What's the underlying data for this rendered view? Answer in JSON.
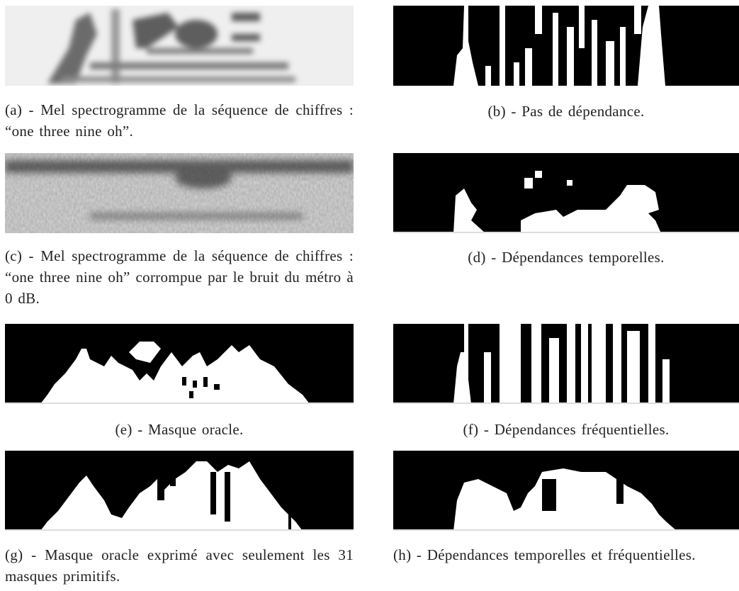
{
  "panels": [
    {
      "caption": "(a) - Mel spectrogramme de la séquence de chiffres : “one three nine oh”."
    },
    {
      "caption": "(b) - Pas de dépendance."
    },
    {
      "caption": "(c) - Mel spectrogramme de la séquence de chiffres : “one three nine oh” corrompue par le bruit du métro à 0 dB."
    },
    {
      "caption": "(d) - Dépendances temporelles."
    },
    {
      "caption": "(e) - Masque oracle."
    },
    {
      "caption": "(f) - Dépendances fréquentielles."
    },
    {
      "caption": "(g) - Masque oracle exprimé avec seulement les 31 masques primitifs."
    },
    {
      "caption": "(h) - Dépendances temporelles et fréquen­tielles."
    }
  ]
}
